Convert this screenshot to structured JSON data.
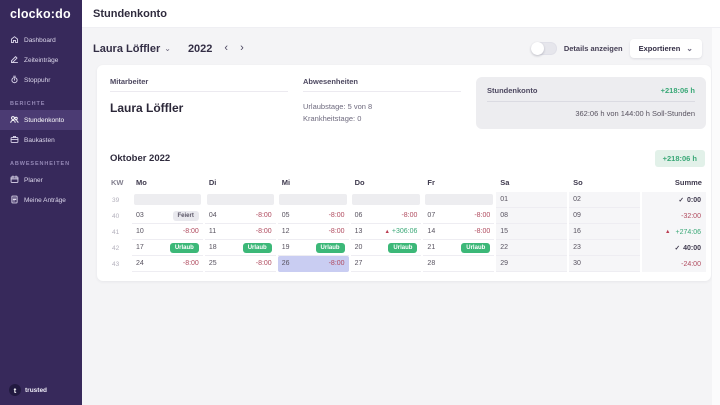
{
  "topbar": {
    "title": "Stundenkonto"
  },
  "sidebar": {
    "logo": "clocko:do",
    "sections": [
      {
        "header": null,
        "items": [
          {
            "label": "Dashboard",
            "icon": "home-icon",
            "active": false
          },
          {
            "label": "Zeiteinträge",
            "icon": "edit-icon",
            "active": false
          },
          {
            "label": "Stoppuhr",
            "icon": "stopwatch-icon",
            "active": false
          }
        ]
      },
      {
        "header": "Berichte",
        "items": [
          {
            "label": "Stundenkonto",
            "icon": "users-icon",
            "active": true
          },
          {
            "label": "Baukasten",
            "icon": "kit-icon",
            "active": false
          }
        ]
      },
      {
        "header": "Abwesenheiten",
        "items": [
          {
            "label": "Planer",
            "icon": "calendar-icon",
            "active": false
          },
          {
            "label": "Meine Anträge",
            "icon": "file-icon",
            "active": false
          }
        ]
      }
    ],
    "trusted": {
      "initial": "t",
      "label": "trusted"
    }
  },
  "toolbar": {
    "employee": "Laura Löffler",
    "dropdown_chevron": "⌄",
    "year": "2022",
    "prev": "‹",
    "next": "›",
    "details_toggle_label": "Details anzeigen",
    "export_label": "Exportieren"
  },
  "summary": {
    "mitarbeiter": {
      "title": "Mitarbeiter",
      "name": "Laura Löffler"
    },
    "abwesenheiten": {
      "title": "Abwesenheiten",
      "lines": [
        "Urlaubstage: 5 von 8",
        "Krankheitstage: 0"
      ]
    },
    "stundenkonto": {
      "title": "Stundenkonto",
      "balance": "+218:06 h",
      "detail": "362:06 h von 144:00 h Soll-Stunden"
    }
  },
  "month": {
    "title": "Oktober 2022",
    "badge": "+218:06 h"
  },
  "calendar": {
    "headers": [
      "KW",
      "Mo",
      "Di",
      "Mi",
      "Do",
      "Fr",
      "Sa",
      "So",
      "Summe"
    ],
    "rows": [
      {
        "kw": "39",
        "days": [
          {
            "placeholder": true
          },
          {
            "placeholder": true
          },
          {
            "placeholder": true
          },
          {
            "placeholder": true
          },
          {
            "placeholder": true
          },
          {
            "day": "01"
          },
          {
            "day": "02"
          }
        ],
        "sum": {
          "icon": "check",
          "value": "0:00",
          "style": "ok"
        }
      },
      {
        "kw": "40",
        "days": [
          {
            "day": "03",
            "badge": "Feiert",
            "badge_style": "holiday"
          },
          {
            "day": "04",
            "value": "-8:00",
            "value_style": "negative"
          },
          {
            "day": "05",
            "value": "-8:00",
            "value_style": "negative"
          },
          {
            "day": "06",
            "value": "-8:00",
            "value_style": "negative"
          },
          {
            "day": "07",
            "value": "-8:00",
            "value_style": "negative"
          },
          {
            "day": "08"
          },
          {
            "day": "09"
          }
        ],
        "sum": {
          "value": "-32:00",
          "style": "negative"
        }
      },
      {
        "kw": "41",
        "days": [
          {
            "day": "10",
            "value": "-8:00",
            "value_style": "negative"
          },
          {
            "day": "11",
            "value": "-8:00",
            "value_style": "negative"
          },
          {
            "day": "12",
            "value": "-8:00",
            "value_style": "negative"
          },
          {
            "day": "13",
            "warn": true,
            "value": "+306:06",
            "value_style": "positive"
          },
          {
            "day": "14",
            "value": "-8:00",
            "value_style": "negative"
          },
          {
            "day": "15"
          },
          {
            "day": "16"
          }
        ],
        "sum": {
          "icon": "warning",
          "value": "+274:06",
          "style": "positive"
        }
      },
      {
        "kw": "42",
        "days": [
          {
            "day": "17",
            "badge": "Urlaub",
            "badge_style": "urlaub"
          },
          {
            "day": "18",
            "badge": "Urlaub",
            "badge_style": "urlaub"
          },
          {
            "day": "19",
            "badge": "Urlaub",
            "badge_style": "urlaub"
          },
          {
            "day": "20",
            "badge": "Urlaub",
            "badge_style": "urlaub"
          },
          {
            "day": "21",
            "badge": "Urlaub",
            "badge_style": "urlaub"
          },
          {
            "day": "22"
          },
          {
            "day": "23"
          }
        ],
        "sum": {
          "icon": "check",
          "value": "40:00",
          "style": "ok"
        }
      },
      {
        "kw": "43",
        "days": [
          {
            "day": "24",
            "value": "-8:00",
            "value_style": "negative"
          },
          {
            "day": "25",
            "value": "-8:00",
            "value_style": "negative"
          },
          {
            "day": "26",
            "value": "-8:00",
            "value_style": "negative",
            "today": true
          },
          {
            "day": "27"
          },
          {
            "day": "28"
          },
          {
            "day": "29"
          },
          {
            "day": "30"
          }
        ],
        "sum": {
          "value": "-24:00",
          "style": "negative"
        }
      }
    ]
  },
  "icons_map": {
    "check": "✓",
    "warning": "▲"
  },
  "colors": {
    "sidebar_bg": "#37295b",
    "sidebar_active_bg": "#4b3b73",
    "positive_green": "#3aa877",
    "badge_green_bg": "#e2f1e9",
    "negative_red": "#b04a5e",
    "urlaub_badge_green": "#3cb878",
    "today_highlight": "#c9cdf2"
  }
}
